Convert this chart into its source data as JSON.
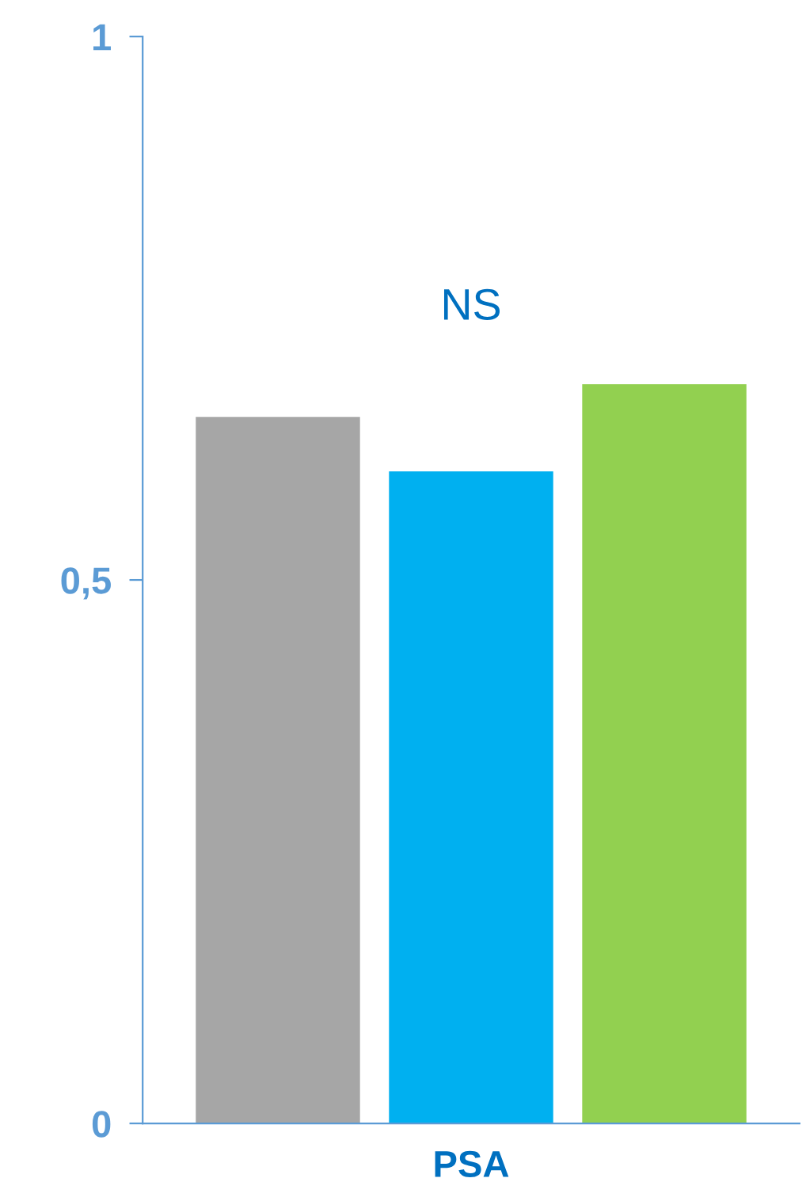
{
  "chart_data": {
    "type": "bar",
    "categories": [
      null,
      "PSA",
      null
    ],
    "values": [
      0.65,
      0.6,
      0.68
    ],
    "colors": [
      "#a6a6a6",
      "#00b0f0",
      "#92d050"
    ],
    "ylim": [
      0,
      1
    ],
    "yticks": [
      0,
      {
        "value": 0.5,
        "label": "0,5"
      },
      1
    ],
    "annotations": [
      "NS"
    ],
    "grid": false,
    "legend": false
  }
}
